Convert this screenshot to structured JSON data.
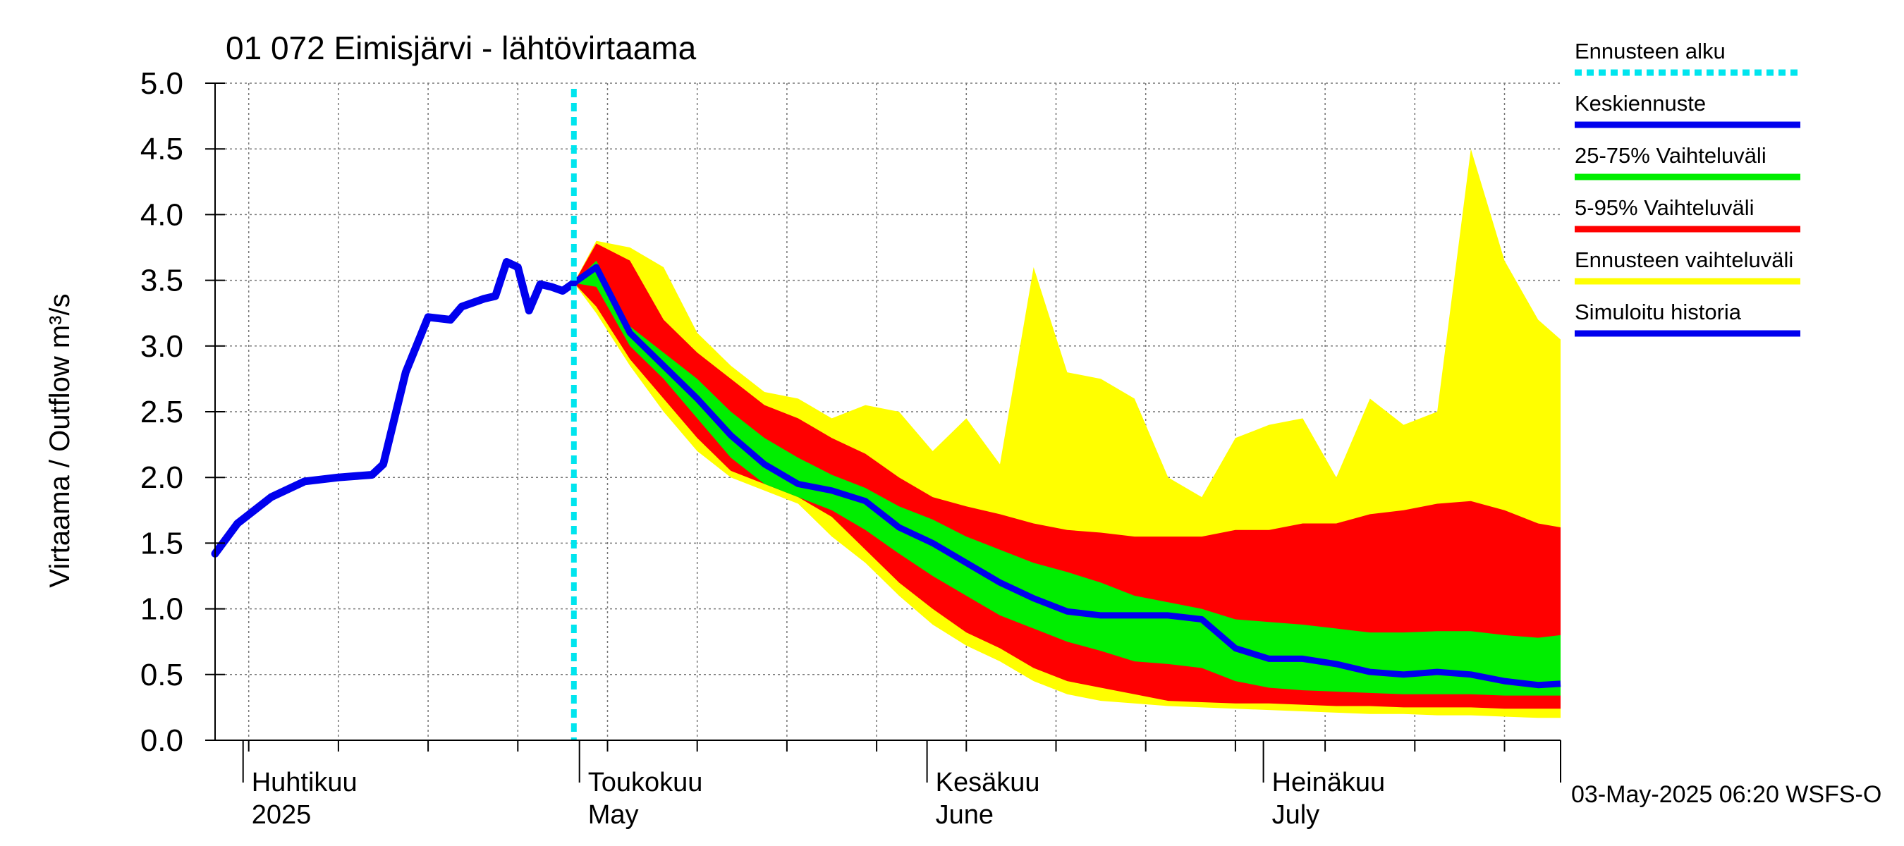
{
  "chart_data": {
    "type": "area",
    "title": "01 072 Eimisjärvi - lähtövirtaama",
    "ylabel": "Virtaama / Outflow    m³/s",
    "ylim": [
      0,
      5
    ],
    "yticks": [
      "0.0",
      "0.5",
      "1.0",
      "1.5",
      "2.0",
      "2.5",
      "3.0",
      "3.5",
      "4.0",
      "4.5",
      "5.0"
    ],
    "xlim": [
      "2025-03-29",
      "2025-07-27"
    ],
    "grid": true,
    "month_labels": [
      {
        "fi": "Huhtikuu",
        "en": "2025",
        "date": "2025-04-01"
      },
      {
        "fi": "Toukokuu",
        "en": "May",
        "date": "2025-05-01"
      },
      {
        "fi": "Kesäkuu",
        "en": "June",
        "date": "2025-06-01"
      },
      {
        "fi": "Heinäkuu",
        "en": "July",
        "date": "2025-07-01"
      }
    ],
    "forecast_start": "2025-04-30",
    "legend_position": "right",
    "legend": [
      {
        "label": "Ennusteen alku",
        "color": "#00e5ee",
        "style": "dotted"
      },
      {
        "label": "Keskiennuste",
        "color": "#0000ee",
        "style": "solid"
      },
      {
        "label": "25-75% Vaihteluväli",
        "color": "#00ee00",
        "style": "solid"
      },
      {
        "label": "5-95% Vaihteluväli",
        "color": "#ff0000",
        "style": "solid"
      },
      {
        "label": "Ennusteen vaihteluväli",
        "color": "#ffff00",
        "style": "solid"
      },
      {
        "label": "Simuloitu historia",
        "color": "#0000ee",
        "style": "solid"
      }
    ],
    "history": {
      "x": [
        "2025-03-29",
        "2025-03-31",
        "2025-04-03",
        "2025-04-06",
        "2025-04-09",
        "2025-04-12",
        "2025-04-13",
        "2025-04-14",
        "2025-04-15",
        "2025-04-17",
        "2025-04-19",
        "2025-04-20",
        "2025-04-21",
        "2025-04-22",
        "2025-04-23",
        "2025-04-24",
        "2025-04-25",
        "2025-04-26",
        "2025-04-27",
        "2025-04-28",
        "2025-04-29",
        "2025-04-30"
      ],
      "y": [
        1.42,
        1.65,
        1.85,
        1.97,
        2.0,
        2.02,
        2.1,
        2.45,
        2.8,
        3.22,
        3.2,
        3.3,
        3.33,
        3.36,
        3.38,
        3.64,
        3.6,
        3.27,
        3.47,
        3.45,
        3.42,
        3.48
      ]
    },
    "forecast_dates": [
      "2025-04-30",
      "2025-05-02",
      "2025-05-05",
      "2025-05-08",
      "2025-05-11",
      "2025-05-14",
      "2025-05-17",
      "2025-05-20",
      "2025-05-23",
      "2025-05-26",
      "2025-05-29",
      "2025-06-01",
      "2025-06-04",
      "2025-06-07",
      "2025-06-10",
      "2025-06-13",
      "2025-06-16",
      "2025-06-19",
      "2025-06-22",
      "2025-06-25",
      "2025-06-28",
      "2025-07-01",
      "2025-07-04",
      "2025-07-07",
      "2025-07-10",
      "2025-07-13",
      "2025-07-16",
      "2025-07-19",
      "2025-07-22",
      "2025-07-25",
      "2025-07-27"
    ],
    "series": [
      {
        "name": "Keskiennuste",
        "values": [
          3.48,
          3.6,
          3.1,
          2.85,
          2.6,
          2.32,
          2.1,
          1.95,
          1.9,
          1.82,
          1.62,
          1.5,
          1.35,
          1.2,
          1.08,
          0.98,
          0.95,
          0.95,
          0.95,
          0.92,
          0.7,
          0.62,
          0.62,
          0.58,
          0.52,
          0.5,
          0.52,
          0.5,
          0.45,
          0.42,
          0.43
        ]
      },
      {
        "name": "25-75% Vaihteluväli",
        "values_low": [
          3.48,
          3.45,
          3.0,
          2.75,
          2.45,
          2.15,
          1.95,
          1.85,
          1.75,
          1.6,
          1.42,
          1.25,
          1.1,
          0.95,
          0.85,
          0.75,
          0.68,
          0.6,
          0.58,
          0.55,
          0.45,
          0.4,
          0.38,
          0.37,
          0.36,
          0.35,
          0.35,
          0.35,
          0.34,
          0.34,
          0.34
        ],
        "values_high": [
          3.48,
          3.65,
          3.15,
          2.95,
          2.75,
          2.5,
          2.3,
          2.15,
          2.02,
          1.92,
          1.78,
          1.68,
          1.55,
          1.45,
          1.35,
          1.28,
          1.2,
          1.1,
          1.05,
          1.0,
          0.92,
          0.9,
          0.88,
          0.85,
          0.82,
          0.82,
          0.83,
          0.83,
          0.8,
          0.78,
          0.8
        ]
      },
      {
        "name": "5-95% Vaihteluväli",
        "values_low": [
          3.48,
          3.3,
          2.9,
          2.6,
          2.3,
          2.05,
          1.95,
          1.85,
          1.7,
          1.45,
          1.2,
          1.0,
          0.82,
          0.7,
          0.55,
          0.45,
          0.4,
          0.35,
          0.3,
          0.29,
          0.28,
          0.28,
          0.27,
          0.26,
          0.26,
          0.25,
          0.25,
          0.25,
          0.24,
          0.24,
          0.24
        ],
        "values_high": [
          3.48,
          3.78,
          3.65,
          3.2,
          2.95,
          2.75,
          2.55,
          2.45,
          2.3,
          2.18,
          2.0,
          1.85,
          1.78,
          1.72,
          1.65,
          1.6,
          1.58,
          1.55,
          1.55,
          1.55,
          1.6,
          1.6,
          1.65,
          1.65,
          1.72,
          1.75,
          1.8,
          1.82,
          1.75,
          1.65,
          1.62
        ]
      },
      {
        "name": "Ennusteen vaihteluväli",
        "values_low": [
          3.48,
          3.25,
          2.85,
          2.5,
          2.2,
          2.0,
          1.9,
          1.8,
          1.55,
          1.35,
          1.1,
          0.88,
          0.72,
          0.6,
          0.45,
          0.35,
          0.3,
          0.28,
          0.26,
          0.25,
          0.24,
          0.23,
          0.22,
          0.21,
          0.2,
          0.2,
          0.19,
          0.19,
          0.18,
          0.17,
          0.17
        ],
        "values_high": [
          3.48,
          3.8,
          3.75,
          3.6,
          3.1,
          2.85,
          2.65,
          2.6,
          2.45,
          2.55,
          2.5,
          2.2,
          2.45,
          2.1,
          3.6,
          2.8,
          2.75,
          2.6,
          2.0,
          1.85,
          2.3,
          2.4,
          2.45,
          2.0,
          2.6,
          2.4,
          2.5,
          4.5,
          3.65,
          3.2,
          3.05
        ]
      }
    ],
    "footer": "03-May-2025 06:20 WSFS-O"
  }
}
